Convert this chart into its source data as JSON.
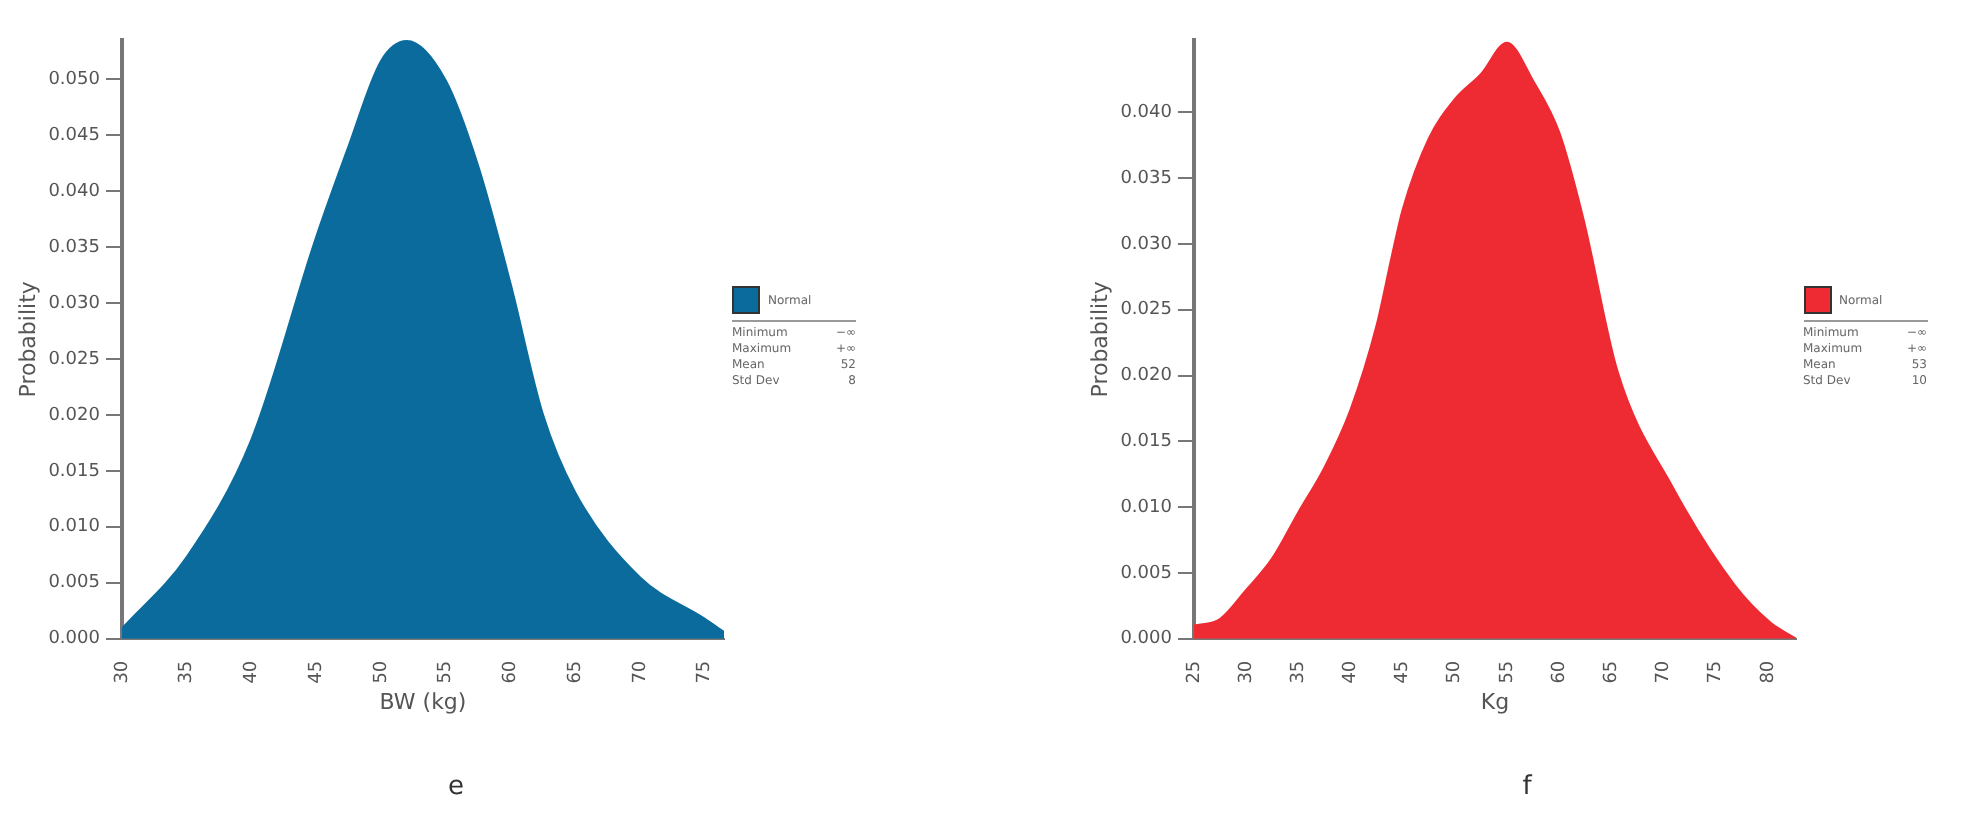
{
  "chart_data": [
    {
      "type": "area",
      "xlabel": "BW (kg)",
      "ylabel": "Probability",
      "legend": "right",
      "x": [
        30,
        35,
        40,
        45,
        47.5,
        50,
        52,
        55,
        57.5,
        60,
        62.5,
        65,
        70,
        75,
        76.5
      ],
      "series": [
        {
          "name": "Normal",
          "color": "#0a6b9c",
          "values": [
            0.0009,
            0.0073,
            0.0178,
            0.0359,
            0.044,
            0.0516,
            0.0534,
            0.0499,
            0.0423,
            0.0318,
            0.0201,
            0.0131,
            0.0055,
            0.0018,
            0.0006
          ]
        }
      ],
      "xlim": [
        30,
        76.5
      ],
      "xticks": [
        30,
        35,
        40,
        45,
        50,
        55,
        60,
        65,
        70,
        75
      ],
      "ylim": [
        0,
        0.0535
      ],
      "yticks": [
        {
          "value": 0,
          "label": "0.000"
        },
        {
          "value": 0.005,
          "label": "0.005"
        },
        {
          "value": 0.01,
          "label": "0.010"
        },
        {
          "value": 0.015,
          "label": "0.015"
        },
        {
          "value": 0.02,
          "label": "0.020"
        },
        {
          "value": 0.025,
          "label": "0.025"
        },
        {
          "value": 0.03,
          "label": "0.030"
        },
        {
          "value": 0.035,
          "label": "0.035"
        },
        {
          "value": 0.04,
          "label": "0.040"
        },
        {
          "value": 0.045,
          "label": "0.045"
        },
        {
          "value": 0.05,
          "label": "0.050"
        }
      ],
      "grid": false,
      "annotations": [
        "Minimum",
        "−∞",
        "Maximum",
        "+∞",
        "Mean",
        "52",
        "Std Dev",
        "8",
        "e"
      ]
    },
    {
      "type": "area",
      "xlabel": "Kg",
      "ylabel": "Probability",
      "legend": "right",
      "x": [
        25,
        27.5,
        30,
        32.5,
        35,
        37.5,
        40,
        42.5,
        44,
        45,
        47.5,
        50,
        52.5,
        55,
        57.5,
        60,
        62.3,
        65.6,
        70.9,
        76.8,
        80.3,
        82.7
      ],
      "series": [
        {
          "name": "Normal",
          "color": "#ee2a32",
          "values": [
            0.001,
            0.0015,
            0.0037,
            0.0061,
            0.0096,
            0.013,
            0.0174,
            0.0238,
            0.0292,
            0.0326,
            0.038,
            0.041,
            0.0429,
            0.0453,
            0.0424,
            0.0385,
            0.032,
            0.0203,
            0.0115,
            0.0041,
            0.0012,
            0
          ]
        }
      ],
      "xlim": [
        25,
        82.7
      ],
      "xticks": [
        25,
        30,
        35,
        40,
        45,
        50,
        55,
        60,
        65,
        70,
        75,
        80
      ],
      "ylim": [
        0,
        0.0455
      ],
      "yticks": [
        {
          "value": 0,
          "label": "0.000"
        },
        {
          "value": 0.005,
          "label": "0.005"
        },
        {
          "value": 0.01,
          "label": "0.010"
        },
        {
          "value": 0.015,
          "label": "0.015"
        },
        {
          "value": 0.02,
          "label": "0.020"
        },
        {
          "value": 0.025,
          "label": "0.025"
        },
        {
          "value": 0.03,
          "label": "0.030"
        },
        {
          "value": 0.035,
          "label": "0.035"
        },
        {
          "value": 0.04,
          "label": "0.040"
        }
      ],
      "grid": false,
      "annotations": [
        "Minimum",
        "−∞",
        "Maximum",
        "+∞",
        "Mean",
        "53",
        "Std Dev",
        "10",
        "f"
      ]
    }
  ]
}
